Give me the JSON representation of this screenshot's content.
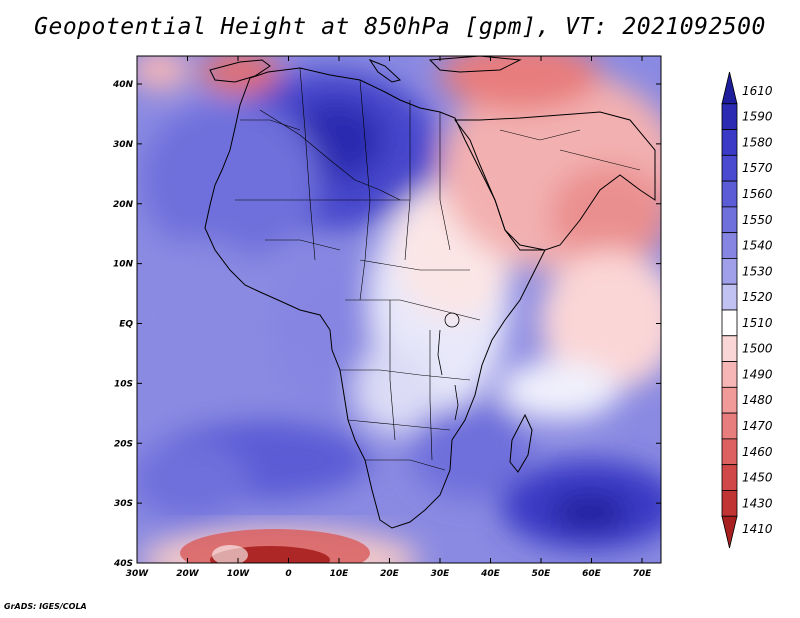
{
  "title": "Geopotential Height at 850hPa [gpm], VT: 2021092500",
  "credit": "GrADS: IGES/COLA",
  "map": {
    "lat_ticks": [
      "40N",
      "30N",
      "20N",
      "10N",
      "EQ",
      "10S",
      "20S",
      "30S",
      "40S"
    ],
    "lon_ticks": [
      "30W",
      "20W",
      "10W",
      "0",
      "10E",
      "20E",
      "30E",
      "40E",
      "50E",
      "60E",
      "70E"
    ]
  },
  "colorbar": {
    "levels": [
      "1610",
      "1590",
      "1580",
      "1570",
      "1560",
      "1550",
      "1540",
      "1530",
      "1520",
      "1510",
      "1500",
      "1490",
      "1480",
      "1470",
      "1460",
      "1450",
      "1430",
      "1410"
    ],
    "colors": [
      "#1e1e9c",
      "#2b2bb3",
      "#3a3ac6",
      "#4a4ad0",
      "#5c5cd6",
      "#7070dc",
      "#8686e2",
      "#a0a0ea",
      "#c2c2f2",
      "#ffffff",
      "#fbd6d6",
      "#f6b6b6",
      "#f09a9a",
      "#e87d7d",
      "#de6161",
      "#d04848",
      "#c03434",
      "#a81f1f"
    ]
  }
}
